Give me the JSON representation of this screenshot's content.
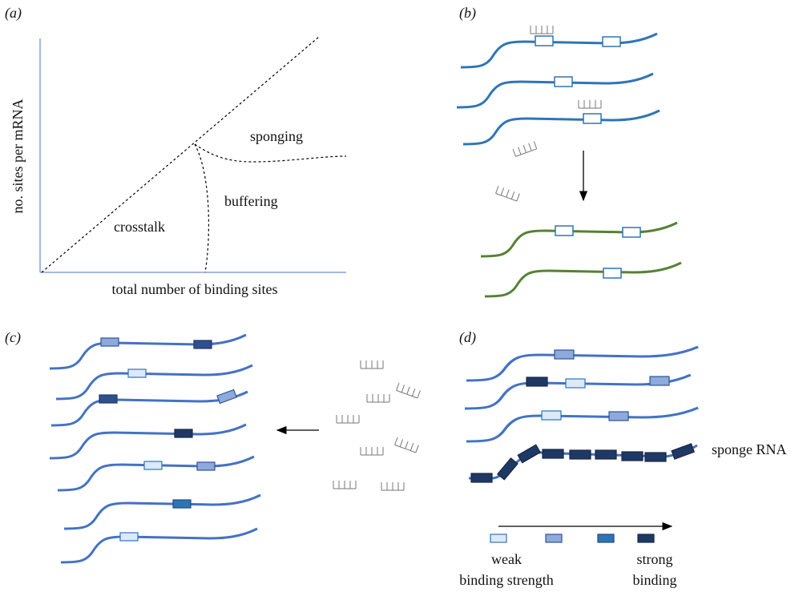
{
  "panel_a": {
    "label": "(a)",
    "y_axis_label": "no. sites per mRNA",
    "x_axis_label": "total number of binding sites",
    "regions": [
      "sponging",
      "buffering",
      "crosstalk"
    ]
  },
  "panel_b": {
    "label": "(b)"
  },
  "panel_c": {
    "label": "(c)"
  },
  "panel_d": {
    "label": "(d)",
    "sponge_label": "sponge RNA",
    "legend": {
      "weak": [
        "weak",
        "binding strength"
      ],
      "strong": [
        "strong",
        "binding"
      ]
    }
  }
}
